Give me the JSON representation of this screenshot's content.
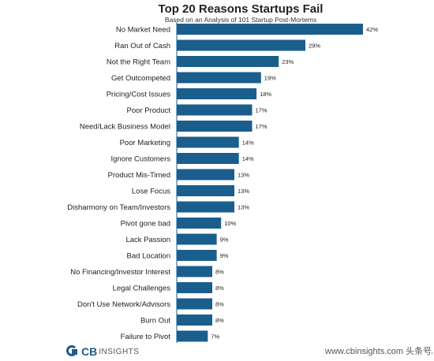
{
  "chart_data": {
    "type": "bar",
    "orientation": "horizontal",
    "title": "Top 20 Reasons Startups Fail",
    "subtitle": "Based on an Analysis of 101 Startup Post-Mortems",
    "categories": [
      "No Market Need",
      "Ran Out of Cash",
      "Not the Right Team",
      "Get Outcompeted",
      "Pricing/Cost Issues",
      "Poor Product",
      "Need/Lack Business Model",
      "Poor Marketing",
      "Ignore Customers",
      "Product Mis-Timed",
      "Lose Focus",
      "Disharmony on Team/Investors",
      "Pivot gone bad",
      "Lack Passion",
      "Bad Location",
      "No Financing/Investor Interest",
      "Legal Challenges",
      "Don't Use Network/Advisors",
      "Burn Out",
      "Failure to Pivot"
    ],
    "values": [
      42,
      29,
      23,
      19,
      18,
      17,
      17,
      14,
      14,
      13,
      13,
      13,
      10,
      9,
      9,
      8,
      8,
      8,
      8,
      7
    ],
    "value_labels": [
      "42%",
      "29%",
      "23%",
      "19%",
      "18%",
      "17%",
      "17%",
      "14%",
      "14%",
      "13%",
      "13%",
      "13%",
      "10%",
      "9%",
      "9%",
      "8%",
      "8%",
      "8%",
      "8%",
      "7%"
    ],
    "xlim": [
      0,
      42
    ],
    "grid": false,
    "bar_color": "#1a5e8d"
  },
  "footer": {
    "logo_mark": "CB",
    "logo_word": "INSIGHTS",
    "watermark": "www.cbinsights.com 头条号/产品笔记侠"
  }
}
